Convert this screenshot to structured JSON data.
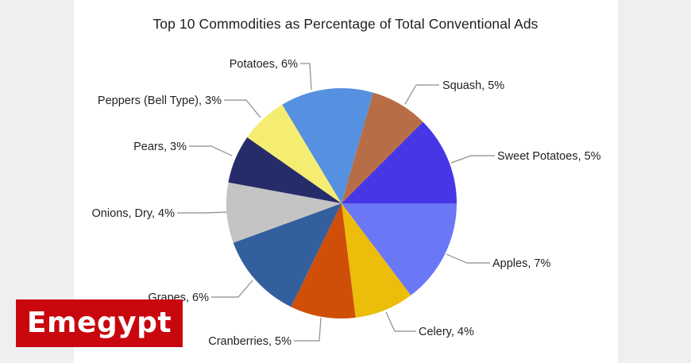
{
  "chart_data": {
    "type": "pie",
    "title": "Top 10 Commodities as Percentage of Total Conventional Ads",
    "legend": "none (data labels with leader lines)",
    "slices": [
      {
        "label": "Apples",
        "value": 7,
        "display": "Apples, 7%",
        "color": "#6b78f5",
        "start": 0,
        "end": 53
      },
      {
        "label": "Celery",
        "value": 4,
        "display": "Celery, 4%",
        "color": "#ecbd0a",
        "start": 53,
        "end": 83
      },
      {
        "label": "Cranberries",
        "value": 5,
        "display": "Cranberries, 5%",
        "color": "#cf4f08",
        "start": 83,
        "end": 116
      },
      {
        "label": "Grapes",
        "value": 6,
        "display": "Grapes, 6%",
        "color": "#345f9e",
        "start": 116,
        "end": 160
      },
      {
        "label": "Onions, Dry",
        "value": 4,
        "display": "Onions, Dry, 4%",
        "color": "#c4c4c4",
        "start": 160,
        "end": 190.5
      },
      {
        "label": "Pears",
        "value": 3,
        "display": "Pears, 3%",
        "color": "#262c6a",
        "start": 190.5,
        "end": 215
      },
      {
        "label": "Peppers (Bell Type)",
        "value": 3,
        "display": "Peppers (Bell Type), 3%",
        "color": "#f5ec72",
        "start": 215,
        "end": 239
      },
      {
        "label": "Potatoes",
        "value": 6,
        "display": "Potatoes, 6%",
        "color": "#5690e0",
        "start": 239,
        "end": 286
      },
      {
        "label": "Squash",
        "value": 5,
        "display": "Squash, 5%",
        "color": "#b76d45",
        "start": 286,
        "end": 315
      },
      {
        "label": "Sweet Potatoes",
        "value": 5,
        "display": "Sweet Potatoes, 5%",
        "color": "#4636e6",
        "start": 315,
        "end": 360
      }
    ],
    "labels": [
      "Apples, 7%",
      "Celery, 4%",
      "Cranberries, 5%",
      "Grapes, 6%",
      "Onions, Dry, 4%",
      "Pears, 3%",
      "Peppers (Bell Type), 3%",
      "Potatoes, 6%",
      "Squash, 5%",
      "Sweet Potatoes, 5%"
    ]
  },
  "watermark": {
    "text": "Emegypt",
    "color": "#c8080e"
  }
}
